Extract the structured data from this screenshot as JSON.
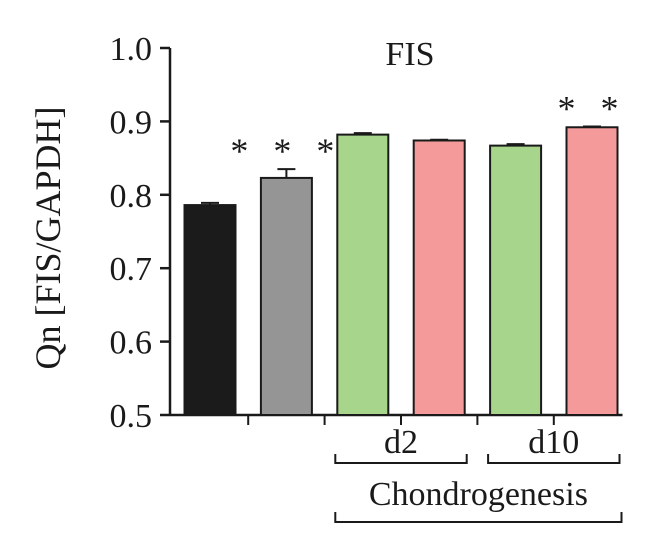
{
  "chart_data": {
    "type": "bar",
    "title": "FIS",
    "ylabel": "Qn [FIS/GAPDH]",
    "xlabel": "",
    "ylim": [
      0.5,
      1.0
    ],
    "yticks": [
      "0.5",
      "0.6",
      "0.7",
      "0.8",
      "0.9",
      "1.0"
    ],
    "ytick_values": [
      0.5,
      0.6,
      0.7,
      0.8,
      0.9,
      1.0
    ],
    "bars": [
      {
        "value": 0.786,
        "error": 0.003,
        "color": "#1b1b1b",
        "significance": ""
      },
      {
        "value": 0.823,
        "error": 0.012,
        "color": "#959595",
        "significance": "***"
      },
      {
        "value": 0.882,
        "error": 0.002,
        "color": "#a8d58c",
        "significance": ""
      },
      {
        "value": 0.874,
        "error": 0.001,
        "color": "#f59a9a",
        "significance": ""
      },
      {
        "value": 0.867,
        "error": 0.002,
        "color": "#a8d58c",
        "significance": ""
      },
      {
        "value": 0.892,
        "error": 0.001,
        "color": "#f59a9a",
        "significance": "**"
      }
    ],
    "groups": [
      {
        "label": "d2",
        "bars": [
          2,
          3
        ]
      },
      {
        "label": "d10",
        "bars": [
          4,
          5
        ]
      }
    ],
    "super_group": {
      "label": "Chondrogenesis",
      "bars": [
        2,
        5
      ]
    }
  }
}
